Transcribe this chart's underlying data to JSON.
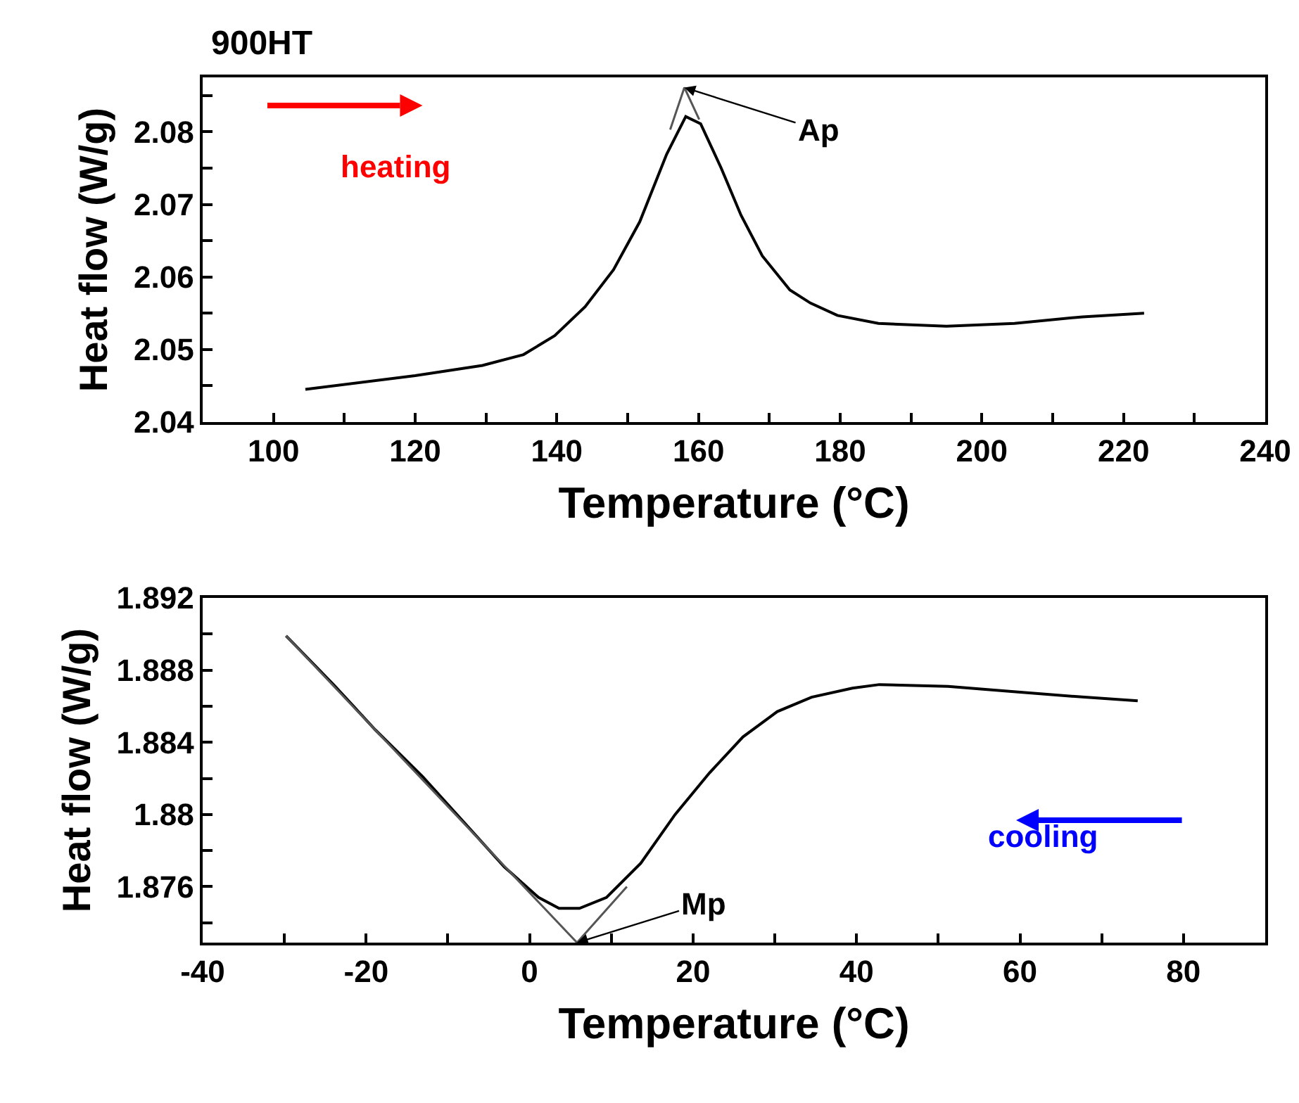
{
  "chart_data": [
    {
      "type": "line",
      "title": "900HT",
      "xlabel": "Temperature (°C)",
      "ylabel": "Heat flow (W/g)",
      "xlim": [
        90,
        240
      ],
      "xticks": [
        100,
        {
          "value": 110,
          "label": null
        },
        120,
        {
          "value": 130,
          "label": null
        },
        140,
        {
          "value": 150,
          "label": null
        },
        160,
        {
          "value": 170,
          "label": null
        },
        180,
        {
          "value": 190,
          "label": null
        },
        200,
        {
          "value": 210,
          "label": null
        },
        220,
        {
          "value": 230,
          "label": null
        },
        240
      ],
      "ylim": [
        2.04,
        2.0875
      ],
      "yticks": [
        2.04,
        {
          "value": 2.045,
          "label": null
        },
        2.05,
        {
          "value": 2.055,
          "label": null
        },
        2.06,
        {
          "value": 2.065,
          "label": null
        },
        2.07,
        {
          "value": 2.075,
          "label": null
        },
        2.08,
        {
          "value": 2.085,
          "label": null
        }
      ],
      "series": [
        {
          "color": "#000000",
          "x": [
            104.5,
            120,
            129.5,
            135.3,
            139.7,
            144,
            148,
            151.7,
            155.5,
            158.2,
            160.3,
            163.2,
            166,
            169,
            172.9,
            175.8,
            179.6,
            185.4,
            195,
            204.6,
            214.2,
            222.9
          ],
          "values": [
            2.0445,
            2.0464,
            2.0478,
            2.0493,
            2.0519,
            2.0559,
            2.061,
            2.0676,
            2.0769,
            2.0821,
            2.0811,
            2.075,
            2.0685,
            2.0629,
            2.0582,
            2.0564,
            2.0547,
            2.0536,
            2.0532,
            2.0536,
            2.0545,
            2.055
          ]
        },
        {
          "color": "#555555",
          "x": [
            156,
            158,
            160.1
          ],
          "values": [
            2.0803,
            2.0861,
            2.0817
          ]
        }
      ],
      "annotations": [
        "heating",
        {
          "text": "Ap",
          "x": 158,
          "y": 2.0861
        }
      ]
    },
    {
      "type": "line",
      "xlabel": "Temperature (°C)",
      "ylabel": "Heat flow (W/g)",
      "xlim": [
        -40,
        90
      ],
      "xticks": [
        -40,
        {
          "value": -30,
          "label": null
        },
        -20,
        {
          "value": -10,
          "label": null
        },
        0,
        {
          "value": 10,
          "label": null
        },
        20,
        {
          "value": 30,
          "label": null
        },
        40,
        {
          "value": 50,
          "label": null
        },
        60,
        {
          "value": 70,
          "label": null
        },
        80
      ],
      "ylim": [
        1.8729,
        1.892
      ],
      "yticks": [
        {
          "value": 1.874,
          "label": null
        },
        1.876,
        {
          "value": 1.878,
          "label": null
        },
        1.88,
        {
          "value": 1.882,
          "label": null
        },
        1.884,
        {
          "value": 1.886,
          "label": null
        },
        1.888,
        {
          "value": 1.89,
          "label": null
        },
        1.892
      ],
      "series": [
        {
          "color": "#000000",
          "x": [
            -29.8,
            -24,
            -18.9,
            -13.1,
            -7.3,
            -3.1,
            1.1,
            3.6,
            6.1,
            9.4,
            13.6,
            17.8,
            22,
            26.1,
            30.3,
            34.5,
            39.5,
            42.8,
            51.2,
            59.5,
            67.9,
            74.4
          ],
          "values": [
            1.8899,
            1.8872,
            1.8847,
            1.8821,
            1.8792,
            1.8771,
            1.8754,
            1.8748,
            1.8748,
            1.8754,
            1.8773,
            1.88,
            1.8823,
            1.8843,
            1.8857,
            1.8865,
            1.887,
            1.8872,
            1.8871,
            1.8868,
            1.8865,
            1.8863
          ]
        },
        {
          "color": "#555555",
          "x": [
            -29.8,
            5.8,
            11.9
          ],
          "values": [
            1.8899,
            1.8729,
            1.876
          ]
        }
      ],
      "annotations": [
        {
          "text": "Mp",
          "x": 5.8,
          "y": 1.8729
        },
        "cooling"
      ]
    }
  ]
}
